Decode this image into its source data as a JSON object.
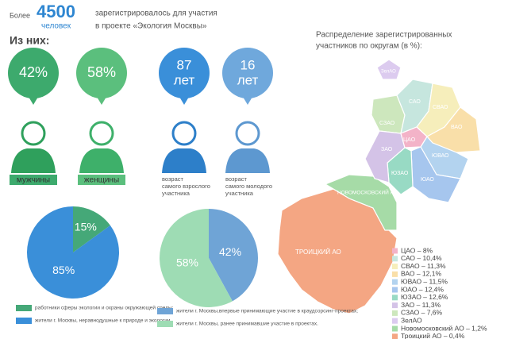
{
  "header": {
    "pre": "Более",
    "number": "4500",
    "unit": "человек",
    "line1": "зарегистрировалось для участия",
    "line2": "в проекте «Экология Москвы»"
  },
  "subheader": "Из них:",
  "stats": [
    {
      "value": "42%",
      "label": "мужчины"
    },
    {
      "value": "58%",
      "label": "женщины"
    },
    {
      "value": "87",
      "unit": "лет",
      "label": "возраст самого взрослого участника"
    },
    {
      "value": "16",
      "unit": "лет",
      "label": "возраст самого молодого участника"
    }
  ],
  "chart_data": [
    {
      "type": "pie",
      "categories": [
        "работники сферы экологии и охраны окружающей среды;",
        "жители г. Москвы, неравнодушные к природе и экологии."
      ],
      "values": [
        15,
        85
      ],
      "value_labels": [
        "15%",
        "85%"
      ],
      "colors": [
        "#45a878",
        "#3a8fd9"
      ]
    },
    {
      "type": "pie",
      "categories": [
        "жители г. Москвы,впервые принимающие участие в краудсорсинг-проектах;",
        "жители г. Москвы, ранее принимавшие участие в проектах."
      ],
      "values": [
        42,
        58
      ],
      "value_labels": [
        "42%",
        "58%"
      ],
      "colors": [
        "#6fa4d6",
        "#9edcb4"
      ]
    }
  ],
  "map": {
    "title": [
      "Распределение зарегистрированных",
      "участников по округам (в %):"
    ],
    "districts": [
      {
        "label": "ЦАО",
        "legend": "ЦАО – 8%",
        "color": "#f3b3c8"
      },
      {
        "label": "САО",
        "legend": "САО – 10,4%",
        "color": "#c6e6de"
      },
      {
        "label": "СВАО",
        "legend": "СВАО – 11,3%",
        "color": "#f6eebb"
      },
      {
        "label": "ВАО",
        "legend": "ВАО – 12,1%",
        "color": "#f9dfa9"
      },
      {
        "label": "ЮВАО",
        "legend": "ЮВАО – 11,5%",
        "color": "#b3d3ef"
      },
      {
        "label": "ЮАО",
        "legend": "ЮАО – 12,4%",
        "color": "#a6c6ee"
      },
      {
        "label": "ЮЗАО",
        "legend": "ЮЗАО – 12,6%",
        "color": "#98dac4"
      },
      {
        "label": "ЗАО",
        "legend": "ЗАО – 11,3%",
        "color": "#d4c3e7"
      },
      {
        "label": "СЗАО",
        "legend": "СЗАО – 7,6%",
        "color": "#cde7bd"
      },
      {
        "label": "ЗелАО",
        "legend": "ЗелАО",
        "color": "#dccbef"
      },
      {
        "label": "НОВОМОСКОВСКИЙ АО",
        "legend": "Новомосковский АО – 1,2%",
        "color": "#a6dba7"
      },
      {
        "label": "ТРОИЦКИЙ АО",
        "legend": "Троицкий АО – 0,4%",
        "color": "#f4a683"
      }
    ]
  }
}
